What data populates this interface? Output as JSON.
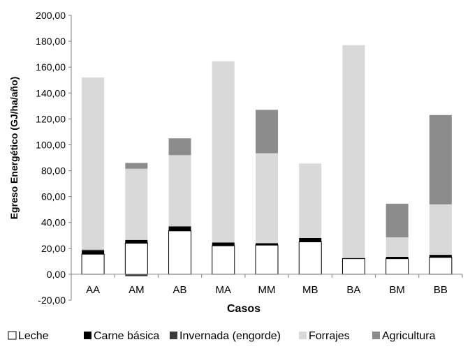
{
  "chart_data": {
    "type": "bar",
    "stacked": true,
    "categories": [
      "AA",
      "AM",
      "AB",
      "MA",
      "MM",
      "MB",
      "BA",
      "BM",
      "BB"
    ],
    "series": [
      {
        "name": "Leche",
        "color": "#ffffff",
        "values": [
          15.5,
          24,
          33.5,
          22,
          22.5,
          25,
          12,
          12,
          13
        ]
      },
      {
        "name": "Carne básica",
        "color": "#000000",
        "values": [
          2.5,
          2.5,
          3.5,
          2.5,
          1.5,
          3,
          0.5,
          1.5,
          2
        ]
      },
      {
        "name": "Invernada (engorde)",
        "color": "#3a3a3a",
        "values": [
          1,
          -1.5,
          0,
          0,
          0,
          0,
          0,
          0,
          0
        ]
      },
      {
        "name": "Forrajes",
        "color": "#d9d9d9",
        "values": [
          133,
          55,
          55,
          140,
          69.5,
          57.5,
          164.5,
          15,
          39
        ]
      },
      {
        "name": "Agricultura",
        "color": "#8c8c8c",
        "values": [
          0,
          4.5,
          13,
          0,
          33.5,
          0,
          0,
          26,
          69
        ]
      }
    ],
    "title": "",
    "xlabel": "Casos",
    "ylabel": "Egreso Energético (GJ/ha/año)",
    "ylim": [
      -20,
      200
    ],
    "yticks": [
      "-20,00",
      "0,00",
      "20,00",
      "40,00",
      "60,00",
      "80,00",
      "100,00",
      "120,00",
      "140,00",
      "160,00",
      "180,00",
      "200,00"
    ],
    "grid": false,
    "legend_position": "bottom"
  }
}
